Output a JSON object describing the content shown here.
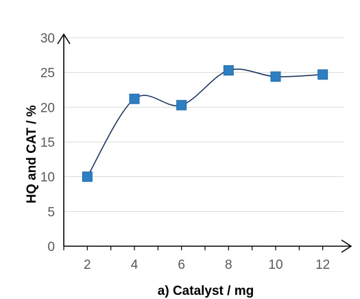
{
  "chart_data": {
    "type": "scatter",
    "title": "",
    "xlabel": "a) Catalyst / mg",
    "ylabel": "HQ and CAT / %",
    "x": [
      2,
      4,
      6,
      8,
      10,
      12
    ],
    "y": [
      10.0,
      21.2,
      20.3,
      25.3,
      24.4,
      24.7
    ],
    "xlim": [
      1,
      13
    ],
    "ylim": [
      0,
      30
    ],
    "xticks": [
      "2",
      "4",
      "6",
      "8",
      "10",
      "12"
    ],
    "yticks": [
      "0",
      "5",
      "10",
      "15",
      "20",
      "25",
      "30"
    ],
    "grid": "horizontal",
    "legend": "none",
    "trendline": "smooth curve through points",
    "colors": {
      "marker": "#2e7fc1",
      "marker_edge": "#1f6aa8",
      "trendline": "#1f3864",
      "grid": "#d9d9d9",
      "axis": "#000000"
    }
  }
}
